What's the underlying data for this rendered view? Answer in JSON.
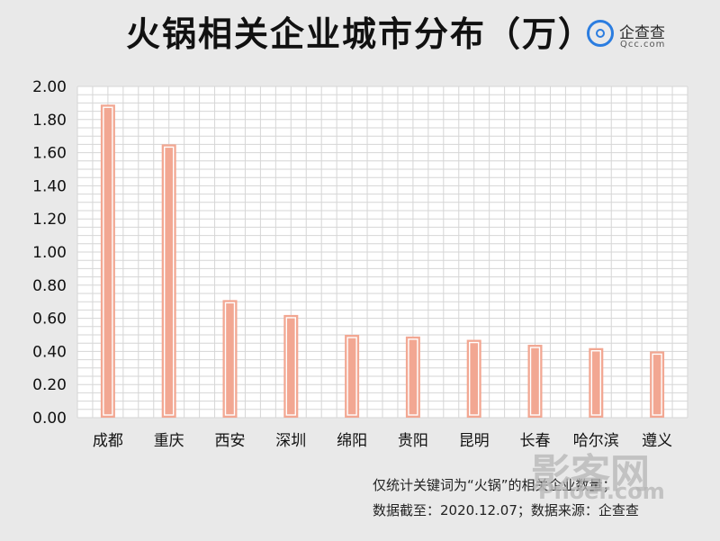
{
  "title": "火锅相关企业城市分布（万）",
  "logo": {
    "name": "企查查",
    "domain": "Qcc.com"
  },
  "colors": {
    "bar_fill": "#f2a792",
    "bar_inner": "#ffffff",
    "grid": "#d6d6d6",
    "plot_bg": "#ffffff",
    "page_bg": "#e9e9e9"
  },
  "chart_data": {
    "type": "bar",
    "title": "火锅相关企业城市分布（万）",
    "xlabel": "",
    "ylabel": "",
    "categories": [
      "成都",
      "重庆",
      "西安",
      "深圳",
      "绵阳",
      "贵阳",
      "昆明",
      "长春",
      "哈尔滨",
      "遵义"
    ],
    "values": [
      1.89,
      1.65,
      0.71,
      0.62,
      0.5,
      0.49,
      0.47,
      0.44,
      0.42,
      0.4
    ],
    "ylim": [
      0,
      2.0
    ],
    "yticks": [
      "0.00",
      "0.20",
      "0.40",
      "0.60",
      "0.80",
      "1.00",
      "1.20",
      "1.40",
      "1.60",
      "1.80",
      "2.00"
    ],
    "grid": true,
    "legend": "none"
  },
  "footnotes": {
    "line1": "仅统计关键词为“火锅”的相关企业数量；",
    "line2": "数据截至：2020.12.07；数据来源：企查查"
  },
  "watermark": {
    "line1": "影客网",
    "line2": "Pnoer.com"
  }
}
